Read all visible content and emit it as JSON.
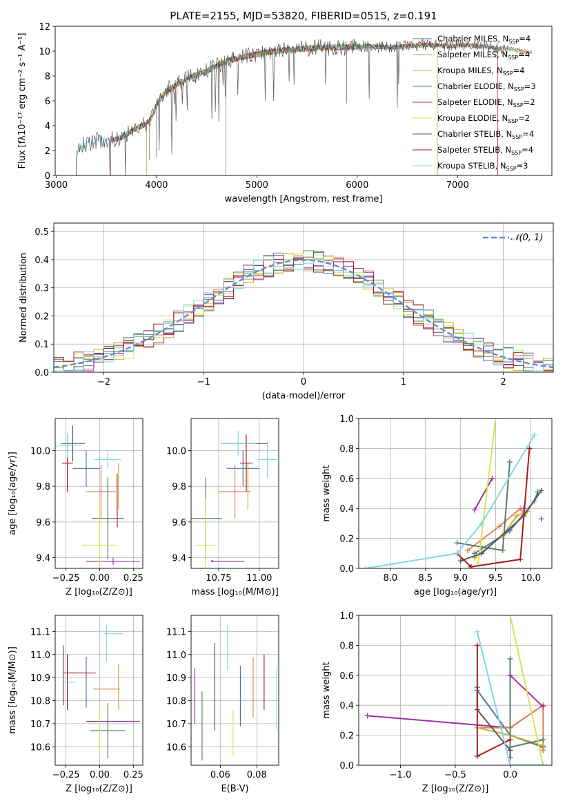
{
  "title": "PLATE=2155, MJD=53820, FIBERID=0515, z=0.191",
  "colors": {
    "Chabrier MILES": "#4c72b0",
    "Salpeter MILES": "#dd8452",
    "Kroupa MILES": "#ccb02a",
    "Chabrier ELODIE": "#55805e",
    "Salpeter ELODIE": "#9b2fa6",
    "Kroupa ELODIE": "#d4e64f",
    "Chabrier STELIB": "#555555",
    "Salpeter STELIB": "#a8191d",
    "Kroupa STELIB": "#7fd8e0",
    "normal": "#5b8fd6"
  },
  "chart_data": [
    {
      "id": "spectrum",
      "type": "line",
      "xlabel": "wavelength [Angstrom, rest frame]",
      "ylabel": "Flux [fλ10⁻¹⁷ erg cm⁻² s⁻¹ A⁻¹]",
      "xlim": [
        2990,
        7940
      ],
      "ylim": [
        0,
        12
      ],
      "xticks": [
        3000,
        4000,
        5000,
        6000,
        7000
      ],
      "yticks": [
        0,
        2,
        4,
        6,
        8,
        10,
        12
      ],
      "continuum": {
        "x": [
          3200,
          3250,
          3400,
          3600,
          3700,
          3800,
          3900,
          3950,
          4000,
          4100,
          4300,
          4500,
          4700,
          4900,
          5100,
          5300,
          5500,
          5700,
          5900,
          6100,
          6300,
          6500,
          6700,
          6900,
          7100,
          7300,
          7500,
          7700
        ],
        "y": [
          1.8,
          2.4,
          2.8,
          2.9,
          3.3,
          3.8,
          4.2,
          4.6,
          5.8,
          6.8,
          7.8,
          8.4,
          9.2,
          9.6,
          9.9,
          10.1,
          10.2,
          10.3,
          10.3,
          10.4,
          10.3,
          10.4,
          10.5,
          10.4,
          10.5,
          10.3,
          10.2,
          9.9
        ]
      },
      "series": [
        {
          "name": "Chabrier MILES, N_SSP=4",
          "start": 3540,
          "end": 7750,
          "cutoff_end": false
        },
        {
          "name": "Salpeter MILES, N_SSP=4",
          "start": 3540,
          "end": 7740,
          "cutoff_end": false
        },
        {
          "name": "Kroupa MILES, N_SSP=4",
          "start": 3540,
          "end": 7700,
          "cutoff_end": false
        },
        {
          "name": "Chabrier ELODIE, N_SSP=3",
          "start": 3900,
          "end": 6800,
          "cutoff_end": true
        },
        {
          "name": "Salpeter ELODIE, N_SSP=2",
          "start": 3900,
          "end": 6800,
          "cutoff_end": true
        },
        {
          "name": "Kroupa ELODIE, N_SSP=2",
          "start": 3900,
          "end": 6800,
          "cutoff_end": true
        },
        {
          "name": "Chabrier STELIB, N_SSP=4",
          "start": 3200,
          "end": 7500,
          "cutoff_end": false
        },
        {
          "name": "Salpeter STELIB, N_SSP=4",
          "start": 3540,
          "end": 7400,
          "cutoff_end": true
        },
        {
          "name": "Kroupa STELIB, N_SSP=3",
          "start": 3200,
          "end": 7600,
          "cutoff_end": false
        }
      ],
      "legend_labels": [
        [
          "Chabrier MILES, N",
          "SSP",
          "=4"
        ],
        [
          "Salpeter MILES, N",
          "SSP",
          "=4"
        ],
        [
          "Kroupa MILES, N",
          "SSP",
          "=4"
        ],
        [
          "Chabrier ELODIE, N",
          "SSP",
          "=3"
        ],
        [
          "Salpeter ELODIE, N",
          "SSP",
          "=2"
        ],
        [
          "Kroupa ELODIE, N",
          "SSP",
          "=2"
        ],
        [
          "Chabrier STELIB, N",
          "SSP",
          "=4"
        ],
        [
          "Salpeter STELIB, N",
          "SSP",
          "=4"
        ],
        [
          "Kroupa STELIB, N",
          "SSP",
          "=3"
        ]
      ],
      "legend_loc": "right"
    },
    {
      "id": "residuals",
      "type": "step-histogram",
      "xlabel": "(data-model)/error",
      "ylabel": "Normed distribution",
      "xlim": [
        -2.5,
        2.5
      ],
      "ylim": [
        0,
        0.53
      ],
      "xticks": [
        -2,
        -1,
        0,
        1,
        2
      ],
      "xticklabels": [
        "−2",
        "−1",
        "0",
        "1",
        "2"
      ],
      "yticks": [
        0.0,
        0.1,
        0.2,
        0.3,
        0.4,
        0.5
      ],
      "yticklabels": [
        "0.0",
        "0.1",
        "0.2",
        "0.3",
        "0.4",
        "0.5"
      ],
      "grid": true,
      "bin_width": 0.1,
      "legend": "𝒩(0, 1)",
      "legend_loc": "top-right"
    },
    {
      "id": "age-vs-Z",
      "type": "errorbar",
      "xlabel": "Z [log₁₀(Z/Z⊙)]",
      "ylabel": "age  [log₁₀(age/yr)]",
      "xlim": [
        -0.33,
        0.32
      ],
      "ylim": [
        9.34,
        10.18
      ],
      "xticks": [
        -0.25,
        0.0,
        0.25
      ],
      "xticklabels": [
        "−0.25",
        "0.00",
        "0.25"
      ],
      "yticks": [
        9.4,
        9.6,
        9.8,
        10.0
      ],
      "yticklabels": [
        "9.4",
        "9.6",
        "9.8",
        "10.0"
      ],
      "points": [
        {
          "series": "Chabrier MILES",
          "x": -0.1,
          "y": 9.9,
          "xerr": 0.1,
          "yerr": 0.1
        },
        {
          "series": "Salpeter MILES",
          "x": 0.01,
          "y": 9.77,
          "xerr": 0.11,
          "yerr": 0.15
        },
        {
          "series": "Kroupa MILES",
          "x": 0.14,
          "y": 9.8,
          "xerr": 0.0,
          "yerr": 0.13
        },
        {
          "series": "Chabrier ELODIE",
          "x": 0.06,
          "y": 9.62,
          "xerr": 0.12,
          "yerr": 0.23
        },
        {
          "series": "Salpeter ELODIE",
          "x": 0.1,
          "y": 9.38,
          "xerr": 0.2,
          "yerr": 0.02
        },
        {
          "series": "Kroupa ELODIE",
          "x": -0.0,
          "y": 9.47,
          "xerr": 0.13,
          "yerr": 0.26
        },
        {
          "series": "Chabrier STELIB",
          "x": -0.2,
          "y": 10.04,
          "xerr": 0.09,
          "yerr": 0.1
        },
        {
          "series": "Salpeter STELIB",
          "x": -0.24,
          "y": 9.93,
          "xerr": 0.04,
          "yerr": 0.16
        },
        {
          "series": "Salpeter STELIB",
          "x": 0.13,
          "y": 9.72,
          "xerr": 0.0,
          "yerr": 0.15
        },
        {
          "series": "Kroupa STELIB",
          "x": -0.24,
          "y": 10.03,
          "xerr": 0.1,
          "yerr": 0.07
        },
        {
          "series": "Kroupa STELIB",
          "x": 0.06,
          "y": 9.95,
          "xerr": 0.1,
          "yerr": 0.05
        }
      ]
    },
    {
      "id": "age-vs-mass",
      "type": "errorbar",
      "xlabel": "mass [log₁₀(M/M⊙)]",
      "ylabel": "",
      "xlim": [
        10.58,
        11.12
      ],
      "ylim": [
        9.34,
        10.18
      ],
      "xticks": [
        10.75,
        11.0
      ],
      "xticklabels": [
        "10.75",
        "11.00"
      ],
      "yticks": [
        9.4,
        9.6,
        9.8,
        10.0
      ],
      "yticklabels": [
        "9.4",
        "9.6",
        "9.8",
        "10.0"
      ],
      "points": [
        {
          "series": "Chabrier MILES",
          "x": 10.9,
          "y": 9.9,
          "xerr": 0.1,
          "yerr": 0.1
        },
        {
          "series": "Salpeter MILES",
          "x": 10.85,
          "y": 9.77,
          "xerr": 0.1,
          "yerr": 0.15
        },
        {
          "series": "Kroupa MILES",
          "x": 10.93,
          "y": 9.8,
          "xerr": 0.0,
          "yerr": 0.13
        },
        {
          "series": "Chabrier ELODIE",
          "x": 10.67,
          "y": 9.62,
          "xerr": 0.1,
          "yerr": 0.23
        },
        {
          "series": "Salpeter ELODIE",
          "x": 10.71,
          "y": 9.38,
          "xerr": 0.0,
          "yerr": 0.0
        },
        {
          "series": "Salpeter ELODIE",
          "x": 10.81,
          "y": 9.38,
          "xerr": 0.1,
          "yerr": 0.0
        },
        {
          "series": "Kroupa ELODIE",
          "x": 10.67,
          "y": 9.47,
          "xerr": 0.06,
          "yerr": 0.26
        },
        {
          "series": "Chabrier STELIB",
          "x": 10.91,
          "y": 10.04,
          "xerr": 0.14,
          "yerr": 0.0
        },
        {
          "series": "Salpeter STELIB",
          "x": 10.92,
          "y": 9.93,
          "xerr": 0.04,
          "yerr": 0.16
        },
        {
          "series": "Kroupa STELIB",
          "x": 10.87,
          "y": 10.04,
          "xerr": 0.11,
          "yerr": 0.07
        },
        {
          "series": "Kroupa STELIB",
          "x": 11.05,
          "y": 9.95,
          "xerr": 0.06,
          "yerr": 0.1
        }
      ]
    },
    {
      "id": "weight-vs-age",
      "type": "line",
      "xlabel": "age  [log₁₀(age/yr)]",
      "ylabel": "mass weight",
      "xlim": [
        7.55,
        10.3
      ],
      "ylim": [
        0,
        1
      ],
      "xticks": [
        8.0,
        8.5,
        9.0,
        9.5,
        10.0
      ],
      "xticklabels": [
        "8.0",
        "8.5",
        "9.0",
        "9.5",
        "10.0"
      ],
      "yticks": [
        0,
        0.2,
        0.4,
        0.6,
        0.8,
        1.0
      ],
      "yticklabels": [
        "0.0",
        "0.2",
        "0.4",
        "0.6",
        "0.8",
        "1.0"
      ],
      "grid": true,
      "series": [
        {
          "series": "Chabrier MILES",
          "x": [
            9.2,
            9.7,
            10.05,
            10.1
          ],
          "y": [
            0.1,
            0.25,
            0.45,
            0.51
          ]
        },
        {
          "series": "Salpeter MILES",
          "x": [
            9.1,
            9.55,
            9.85,
            9.9
          ],
          "y": [
            0.12,
            0.28,
            0.4,
            0.37
          ]
        },
        {
          "series": "Kroupa MILES",
          "x": [
            9.2,
            9.6,
            9.8,
            9.95
          ],
          "y": [
            0.07,
            0.22,
            0.35,
            0.38
          ]
        },
        {
          "series": "Chabrier ELODIE",
          "x": [
            8.95,
            9.6,
            9.7
          ],
          "y": [
            0.17,
            0.12,
            0.71
          ]
        },
        {
          "series": "Salpeter ELODIE",
          "x": [
            9.2,
            9.45
          ],
          "y": [
            0.39,
            0.6
          ]
        },
        {
          "series": "Kroupa ELODIE",
          "x": [
            9.25,
            9.5
          ],
          "y": [
            0.03,
            1.0
          ]
        },
        {
          "series": "Chabrier STELIB",
          "x": [
            9.0,
            9.3,
            9.9,
            10.15
          ],
          "y": [
            0.05,
            0.1,
            0.35,
            0.52
          ]
        },
        {
          "series": "Salpeter STELIB",
          "x": [
            8.95,
            9.15,
            9.85,
            9.98
          ],
          "y": [
            0.1,
            0.01,
            0.06,
            0.8
          ]
        },
        {
          "series": "Kroupa STELIB",
          "x": [
            7.65,
            8.95,
            9.3,
            10.05
          ],
          "y": [
            0.0,
            0.1,
            0.3,
            0.89
          ]
        }
      ],
      "extra_points": [
        {
          "series": "Salpeter STELIB",
          "x": 9.15,
          "y": 0.01
        },
        {
          "series": "Salpeter ELODIE",
          "x": 10.15,
          "y": 0.33
        },
        {
          "series": "Salpeter ELODIE",
          "x": 9.9,
          "y": 0.4
        }
      ]
    },
    {
      "id": "mass-vs-Z",
      "type": "errorbar",
      "xlabel": "Z [log₁₀(Z/Z⊙)]",
      "ylabel": "mass [log₁₀(M/M⊙)]",
      "xlim": [
        -0.33,
        0.32
      ],
      "ylim": [
        10.52,
        11.17
      ],
      "xticks": [
        -0.25,
        0.0,
        0.25
      ],
      "xticklabels": [
        "−0.25",
        "0.00",
        "0.25"
      ],
      "yticks": [
        10.6,
        10.7,
        10.8,
        10.9,
        11.0,
        11.1
      ],
      "yticklabels": [
        "10.6",
        "10.7",
        "10.8",
        "10.9",
        "11.0",
        "11.1"
      ],
      "points": [
        {
          "series": "Chabrier MILES",
          "x": -0.1,
          "y": 10.88,
          "xerr": 0.0,
          "yerr": 0.11
        },
        {
          "series": "Salpeter MILES",
          "x": 0.05,
          "y": 10.85,
          "xerr": 0.1,
          "yerr": 0.0
        },
        {
          "series": "Kroupa MILES",
          "x": 0.14,
          "y": 10.86,
          "xerr": 0.0,
          "yerr": 0.1
        },
        {
          "series": "Chabrier ELODIE",
          "x": 0.06,
          "y": 10.67,
          "xerr": 0.13,
          "yerr": 0.12
        },
        {
          "series": "Salpeter ELODIE",
          "x": 0.1,
          "y": 10.71,
          "xerr": 0.2,
          "yerr": 0.0
        },
        {
          "series": "Kroupa ELODIE",
          "x": -0.0,
          "y": 10.67,
          "xerr": 0.0,
          "yerr": 0.09
        },
        {
          "series": "Chabrier STELIB",
          "x": -0.27,
          "y": 10.91,
          "xerr": 0.0,
          "yerr": 0.13
        },
        {
          "series": "Chabrier STELIB",
          "x": -0.22,
          "y": 10.92,
          "xerr": 0.05,
          "yerr": 0.0
        },
        {
          "series": "Salpeter STELIB",
          "x": -0.24,
          "y": 10.88,
          "xerr": 0.0,
          "yerr": 0.12
        },
        {
          "series": "Salpeter STELIB",
          "x": -0.13,
          "y": 10.92,
          "xerr": 0.1,
          "yerr": 0.0
        },
        {
          "series": "Kroupa STELIB",
          "x": -0.22,
          "y": 10.88,
          "xerr": 0.04,
          "yerr": 0.0
        },
        {
          "series": "Kroupa STELIB",
          "x": 0.1,
          "y": 11.09,
          "xerr": 0.07,
          "yerr": 0.0
        },
        {
          "series": "Kroupa STELIB",
          "x": 0.05,
          "y": 11.05,
          "xerr": 0.0,
          "yerr": 0.08
        }
      ]
    },
    {
      "id": "mass-vs-ebv",
      "type": "errorbar",
      "xlabel": "E(B-V)",
      "ylabel": "",
      "xlim": [
        0.044,
        0.092
      ],
      "ylim": [
        10.52,
        11.17
      ],
      "xticks": [
        0.06,
        0.08
      ],
      "xticklabels": [
        "0.06",
        "0.08"
      ],
      "yticks": [
        10.6,
        10.7,
        10.8,
        10.9,
        11.0,
        11.1
      ],
      "yticklabels": [
        "10.6",
        "10.7",
        "10.8",
        "10.9",
        "11.0",
        "11.1"
      ],
      "points": [
        {
          "series": "Salpeter ELODIE",
          "x": 0.046,
          "y": 10.82,
          "xerr": 0,
          "yerr": 0.12
        },
        {
          "series": "Chabrier ELODIE",
          "x": 0.05,
          "y": 10.69,
          "xerr": 0,
          "yerr": 0.15
        },
        {
          "series": "Chabrier STELIB",
          "x": 0.057,
          "y": 10.86,
          "xerr": 0,
          "yerr": 0.19
        },
        {
          "series": "Kroupa STELIB",
          "x": 0.064,
          "y": 11.03,
          "xerr": 0,
          "yerr": 0.1
        },
        {
          "series": "Kroupa ELODIE",
          "x": 0.067,
          "y": 10.66,
          "xerr": 0,
          "yerr": 0.1
        },
        {
          "series": "Chabrier MILES",
          "x": 0.071,
          "y": 10.82,
          "xerr": 0,
          "yerr": 0.13
        },
        {
          "series": "Salpeter MILES",
          "x": 0.078,
          "y": 10.86,
          "xerr": 0,
          "yerr": 0.13
        },
        {
          "series": "Salpeter STELIB",
          "x": 0.084,
          "y": 10.88,
          "xerr": 0,
          "yerr": 0.12
        },
        {
          "series": "Kroupa STELIB",
          "x": 0.091,
          "y": 10.81,
          "xerr": 0,
          "yerr": 0.14
        }
      ]
    },
    {
      "id": "weight-vs-Z",
      "type": "line",
      "xlabel": "Z [log₁₀(Z/Z⊙)]",
      "ylabel": "mass weight",
      "xlim": [
        -1.38,
        0.38
      ],
      "ylim": [
        0,
        1
      ],
      "xticks": [
        -1.0,
        -0.5,
        0.0
      ],
      "xticklabels": [
        "−1.0",
        "−0.5",
        "0.0"
      ],
      "yticks": [
        0,
        0.2,
        0.4,
        0.6,
        0.8,
        1.0
      ],
      "yticklabels": [
        "0.0",
        "0.2",
        "0.4",
        "0.6",
        "0.8",
        "1.0"
      ],
      "grid": true,
      "series": [
        {
          "series": "Salpeter ELODIE",
          "x": [
            -1.3,
            0.0,
            0.3
          ],
          "y": [
            0.33,
            0.25,
            0.4
          ]
        },
        {
          "series": "Chabrier MILES",
          "x": [
            -0.3,
            0.0,
            0.3,
            0.3
          ],
          "y": [
            0.5,
            0.2,
            0.12,
            0.1
          ]
        },
        {
          "series": "Salpeter MILES",
          "x": [
            -0.3,
            0.0,
            0.3,
            0.3
          ],
          "y": [
            0.25,
            0.25,
            0.4,
            0.1
          ]
        },
        {
          "series": "Kroupa MILES",
          "x": [
            -0.3,
            0.0,
            0.3
          ],
          "y": [
            0.25,
            0.2,
            0.13
          ]
        },
        {
          "series": "Chabrier ELODIE",
          "x": [
            0.0,
            0.0,
            0.3
          ],
          "y": [
            0.71,
            0.12,
            0.17
          ]
        },
        {
          "series": "Salpeter ELODIE",
          "x": [
            0.0,
            0.3
          ],
          "y": [
            0.6,
            0.39
          ]
        },
        {
          "series": "Kroupa ELODIE",
          "x": [
            0.0,
            0.3
          ],
          "y": [
            1.0,
            0.0
          ]
        },
        {
          "series": "Chabrier STELIB",
          "x": [
            -0.3,
            -0.3,
            0.0,
            0.0
          ],
          "y": [
            0.52,
            0.37,
            0.1,
            0.05
          ]
        },
        {
          "series": "Salpeter STELIB",
          "x": [
            -0.3,
            -0.3,
            0.0
          ],
          "y": [
            0.8,
            0.06,
            0.17
          ]
        },
        {
          "series": "Kroupa STELIB",
          "x": [
            -0.3,
            0.0,
            0.3
          ],
          "y": [
            0.89,
            0.0,
            0.0
          ]
        }
      ]
    }
  ]
}
